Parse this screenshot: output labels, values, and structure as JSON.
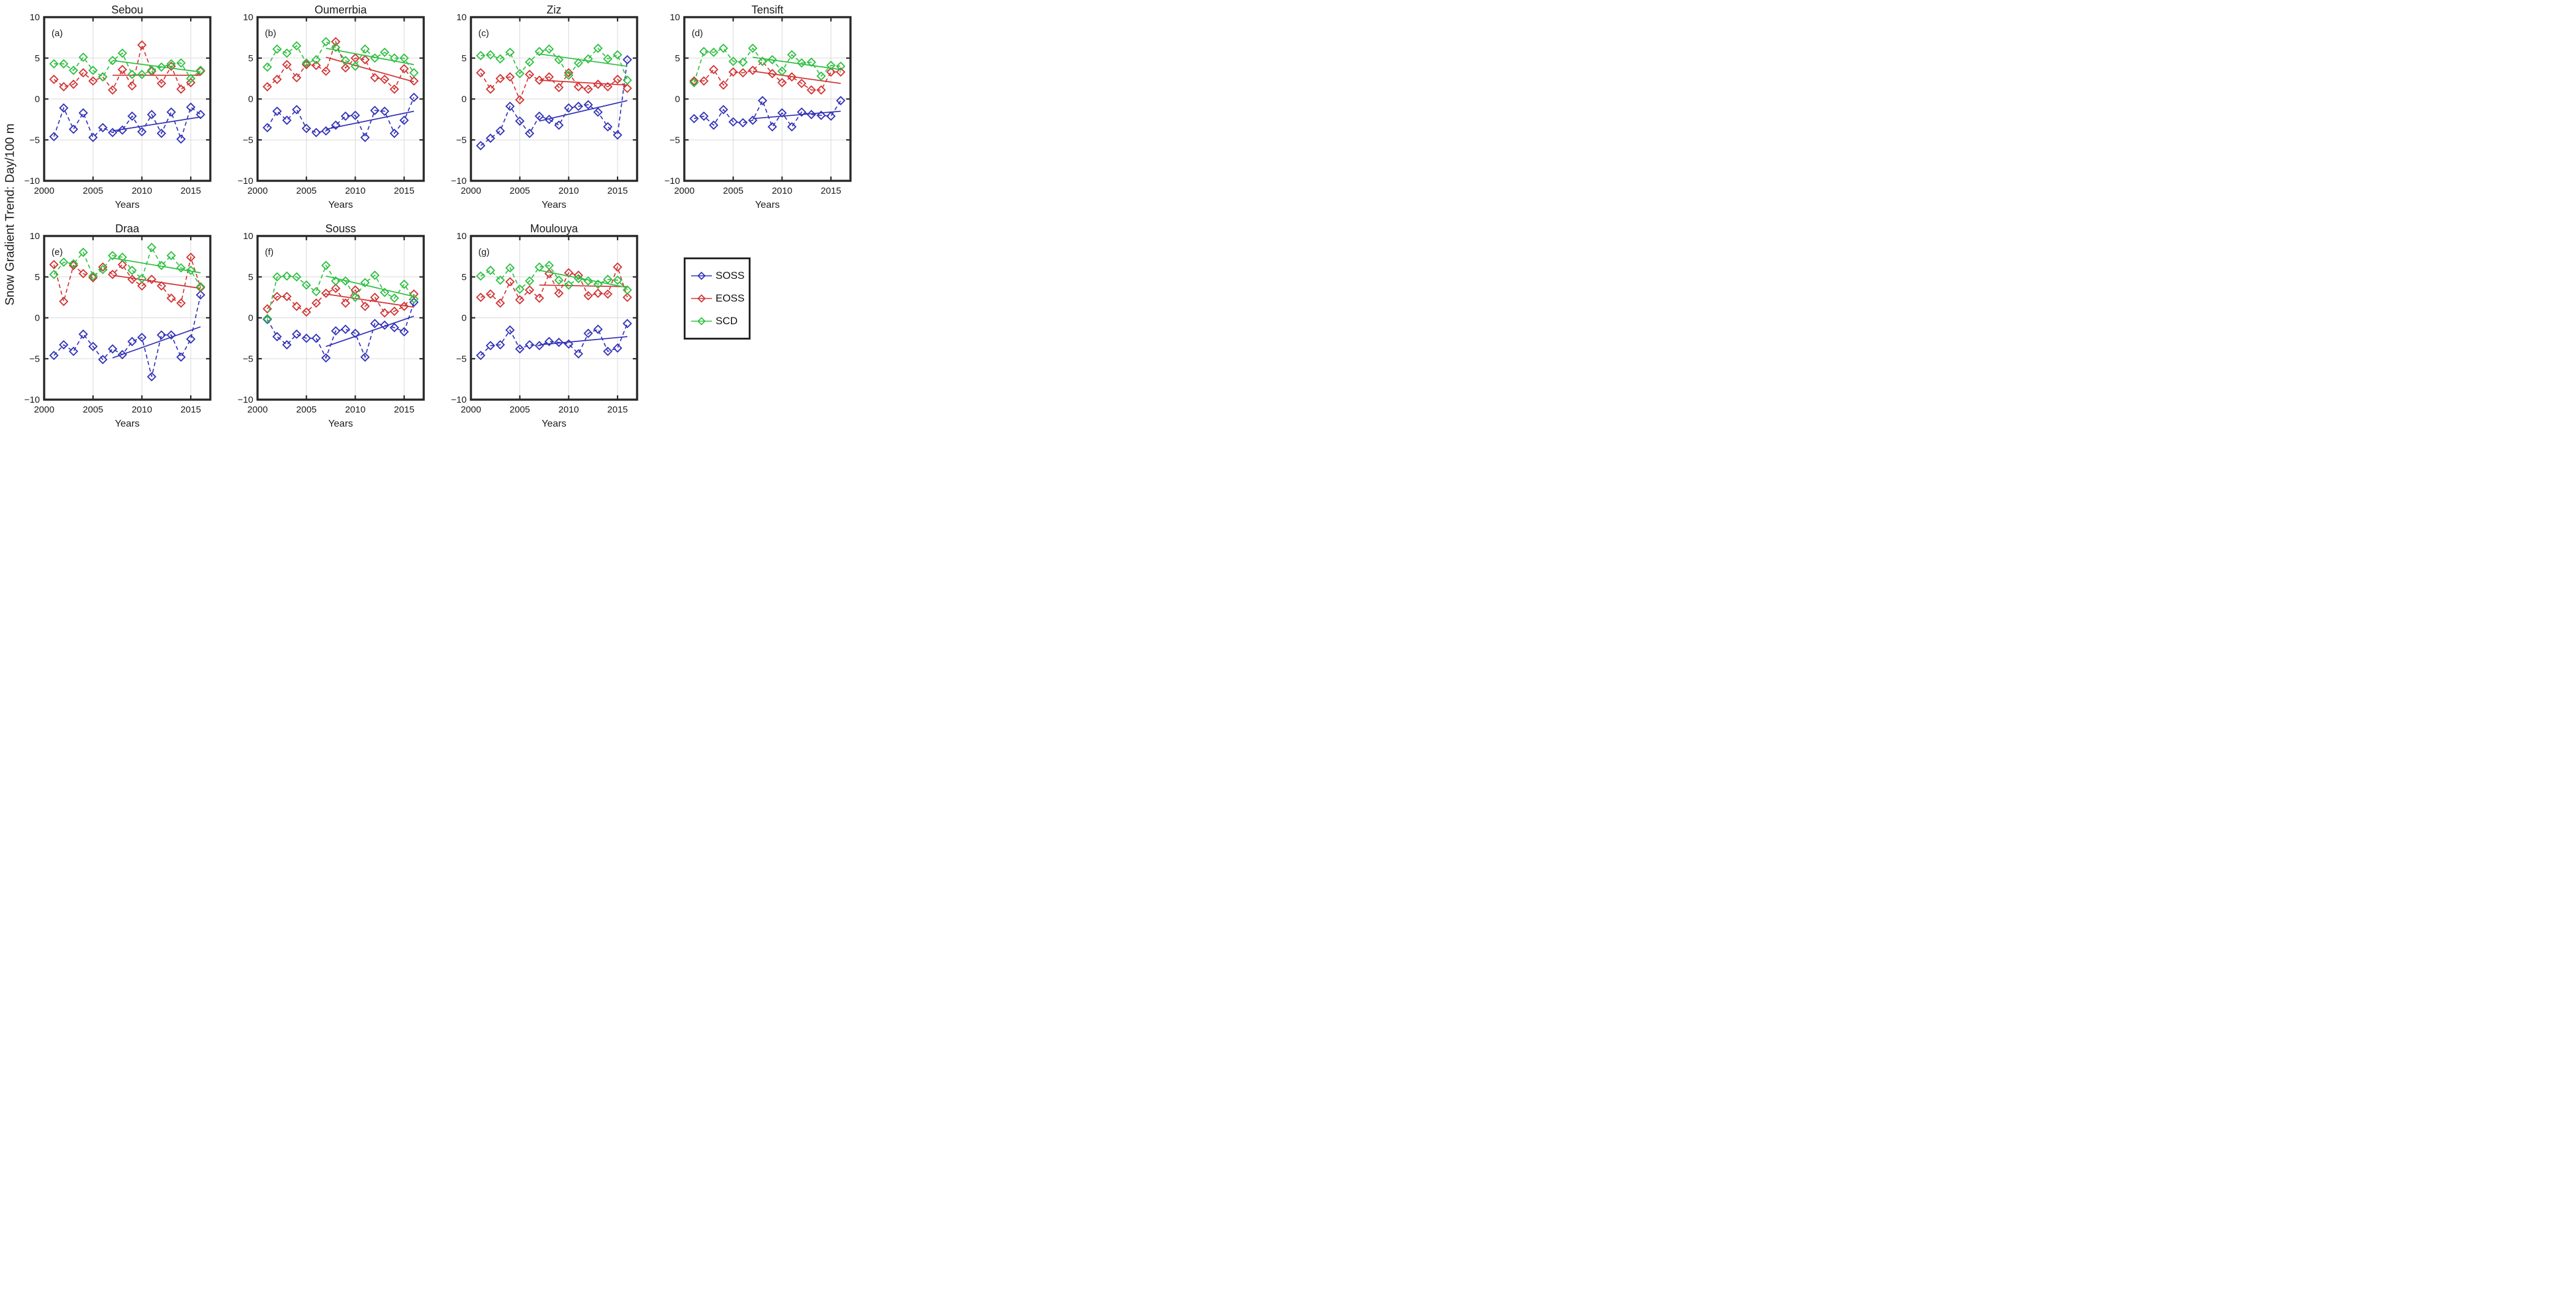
{
  "colors": {
    "SOSS": "#3232b8",
    "EOSS": "#d23434",
    "SCD": "#2fc042",
    "frame": "#262626",
    "grid": "#d9d9d9",
    "text": "#1a1a1a"
  },
  "legend": {
    "items": [
      {
        "label": "SOSS",
        "color": "#3232b8"
      },
      {
        "label": "EOSS",
        "color": "#d23434"
      },
      {
        "label": "SCD",
        "color": "#2fc042"
      }
    ]
  },
  "chart_data": {
    "type": "line",
    "marker": "open-diamond",
    "line_style": "dashed-with-solid-trend",
    "y_label": "Snow Gradient Trend: Day/100 m",
    "x_label": "Years",
    "x_range": [
      2000,
      2017
    ],
    "y_range": [
      -10,
      10
    ],
    "x_ticks": [
      2000,
      2005,
      2010,
      2015
    ],
    "y_ticks": [
      10,
      5,
      0,
      -5,
      -10
    ],
    "grid": true,
    "years": [
      2001,
      2002,
      2003,
      2004,
      2005,
      2006,
      2007,
      2008,
      2009,
      2010,
      2011,
      2012,
      2013,
      2014,
      2015,
      2016
    ],
    "series_names": [
      "SOSS",
      "EOSS",
      "SCD"
    ],
    "panels": [
      {
        "label": "(a)",
        "title": "Sebou",
        "series": {
          "SOSS": {
            "values": [
              -4.6,
              -1.1,
              -3.7,
              -1.7,
              -4.7,
              -3.5,
              -4.1,
              -3.8,
              -2.1,
              -4.0,
              -1.9,
              -4.2,
              -1.6,
              -4.9,
              -1.0,
              -1.9
            ],
            "trend": {
              "x": [
                2007,
                2016
              ],
              "y": [
                -3.9,
                -2.2
              ]
            }
          },
          "EOSS": {
            "values": [
              2.4,
              1.5,
              1.8,
              3.2,
              2.2,
              2.7,
              1.1,
              3.6,
              1.6,
              6.6,
              3.4,
              1.9,
              4.0,
              1.2,
              2.0,
              3.4
            ],
            "trend": {
              "x": [
                2007,
                2016
              ],
              "y": [
                2.9,
                2.9
              ]
            }
          },
          "SCD": {
            "values": [
              4.3,
              4.3,
              3.5,
              5.1,
              3.5,
              2.7,
              4.7,
              5.6,
              3.0,
              3.0,
              3.5,
              3.9,
              4.3,
              4.4,
              2.5,
              3.5
            ],
            "trend": {
              "x": [
                2007,
                2016
              ],
              "y": [
                4.7,
                3.3
              ]
            }
          }
        }
      },
      {
        "label": "(b)",
        "title": "Oumerrbia",
        "series": {
          "SOSS": {
            "values": [
              -3.5,
              -1.5,
              -2.6,
              -1.3,
              -3.6,
              -4.1,
              -3.9,
              -3.2,
              -2.1,
              -2.0,
              -4.7,
              -1.4,
              -1.5,
              -4.2,
              -2.6,
              0.2
            ],
            "trend": {
              "x": [
                2007,
                2016
              ],
              "y": [
                -3.7,
                -1.5
              ]
            }
          },
          "EOSS": {
            "values": [
              1.5,
              2.4,
              4.2,
              2.6,
              4.2,
              4.1,
              3.4,
              7.0,
              3.8,
              5.0,
              4.8,
              2.6,
              2.4,
              1.2,
              3.7,
              2.2
            ],
            "trend": {
              "x": [
                2007,
                2016
              ],
              "y": [
                5.1,
                2.1
              ]
            }
          },
          "SCD": {
            "values": [
              3.9,
              6.1,
              5.6,
              6.5,
              4.4,
              4.8,
              7.0,
              6.3,
              4.7,
              4.0,
              6.1,
              5.0,
              5.7,
              5.0,
              5.0,
              3.2
            ],
            "trend": {
              "x": [
                2007,
                2016
              ],
              "y": [
                6.2,
                4.2
              ]
            }
          }
        }
      },
      {
        "label": "(c)",
        "title": "Ziz",
        "series": {
          "SOSS": {
            "values": [
              -5.7,
              -4.8,
              -3.9,
              -0.9,
              -2.7,
              -4.2,
              -2.1,
              -2.5,
              -3.2,
              -1.1,
              -0.9,
              -0.7,
              -1.6,
              -3.4,
              -4.4,
              4.8
            ],
            "trend": {
              "x": [
                2007,
                2016
              ],
              "y": [
                -2.7,
                -0.2
              ]
            }
          },
          "EOSS": {
            "values": [
              3.2,
              1.2,
              2.5,
              2.7,
              -0.1,
              3.0,
              2.3,
              2.7,
              1.4,
              3.2,
              1.5,
              1.2,
              1.8,
              1.5,
              2.4,
              1.3
            ],
            "trend": {
              "x": [
                2007,
                2016
              ],
              "y": [
                2.3,
                1.7
              ]
            }
          },
          "SCD": {
            "values": [
              5.3,
              5.4,
              4.9,
              5.7,
              3.1,
              4.5,
              5.8,
              6.1,
              4.8,
              2.9,
              4.4,
              4.9,
              6.2,
              4.9,
              5.4,
              2.3
            ],
            "trend": {
              "x": [
                2007,
                2016
              ],
              "y": [
                5.5,
                4.0
              ]
            }
          }
        }
      },
      {
        "label": "(d)",
        "title": "Tensift",
        "series": {
          "SOSS": {
            "values": [
              -2.4,
              -2.1,
              -3.2,
              -1.3,
              -2.8,
              -2.9,
              -2.6,
              -0.2,
              -3.4,
              -1.7,
              -3.4,
              -1.6,
              -1.9,
              -2.0,
              -2.1,
              -0.2
            ],
            "trend": {
              "x": [
                2007,
                2016
              ],
              "y": [
                -2.4,
                -1.5
              ]
            }
          },
          "EOSS": {
            "values": [
              2.2,
              2.2,
              3.6,
              1.7,
              3.3,
              3.2,
              3.5,
              4.6,
              3.1,
              2.0,
              2.7,
              1.9,
              1.1,
              1.1,
              3.3,
              3.3
            ],
            "trend": {
              "x": [
                2007,
                2016
              ],
              "y": [
                3.4,
                1.9
              ]
            }
          },
          "SCD": {
            "values": [
              2.0,
              5.8,
              5.7,
              6.2,
              4.6,
              4.5,
              6.2,
              4.6,
              4.8,
              3.4,
              5.4,
              4.4,
              4.5,
              2.8,
              4.1,
              4.0
            ],
            "trend": {
              "x": [
                2007,
                2016
              ],
              "y": [
                5.1,
                3.6
              ]
            }
          }
        }
      },
      {
        "label": "(e)",
        "title": "Draa",
        "series": {
          "SOSS": {
            "values": [
              -4.6,
              -3.3,
              -4.1,
              -2.0,
              -3.5,
              -5.1,
              -3.8,
              -4.5,
              -2.9,
              -2.4,
              -7.2,
              -2.1,
              -2.1,
              -4.8,
              -2.6,
              2.8
            ],
            "trend": {
              "x": [
                2007,
                2016
              ],
              "y": [
                -4.9,
                -1.1
              ]
            }
          },
          "EOSS": {
            "values": [
              6.5,
              2.0,
              6.4,
              5.4,
              4.9,
              6.2,
              5.3,
              6.5,
              4.7,
              3.9,
              4.7,
              3.9,
              2.4,
              1.8,
              7.4,
              3.7
            ],
            "trend": {
              "x": [
                2007,
                2016
              ],
              "y": [
                5.2,
                3.6
              ]
            }
          },
          "SCD": {
            "values": [
              5.3,
              6.8,
              6.6,
              8.0,
              5.1,
              5.9,
              7.6,
              7.4,
              5.8,
              4.8,
              8.6,
              6.4,
              7.6,
              6.1,
              5.8,
              3.8
            ],
            "trend": {
              "x": [
                2007,
                2016
              ],
              "y": [
                7.3,
                5.5
              ]
            }
          }
        }
      },
      {
        "label": "(f)",
        "title": "Souss",
        "series": {
          "SOSS": {
            "values": [
              -0.2,
              -2.3,
              -3.3,
              -2.0,
              -2.5,
              -2.5,
              -4.9,
              -1.6,
              -1.4,
              -1.9,
              -4.8,
              -0.7,
              -0.9,
              -1.2,
              -1.7,
              1.9
            ],
            "trend": {
              "x": [
                2007,
                2016
              ],
              "y": [
                -3.5,
                0.2
              ]
            }
          },
          "EOSS": {
            "values": [
              1.1,
              2.6,
              2.6,
              1.4,
              0.7,
              1.8,
              3.0,
              3.6,
              1.8,
              3.4,
              1.4,
              2.5,
              0.6,
              0.8,
              1.4,
              2.9
            ],
            "trend": {
              "x": [
                2007,
                2016
              ],
              "y": [
                2.9,
                1.3
              ]
            }
          },
          "SCD": {
            "values": [
              -0.1,
              5.0,
              5.1,
              5.0,
              4.0,
              3.2,
              6.4,
              4.5,
              4.5,
              2.5,
              4.3,
              5.2,
              3.1,
              2.4,
              4.1,
              2.3
            ],
            "trend": {
              "x": [
                2007,
                2016
              ],
              "y": [
                5.1,
                2.6
              ]
            }
          }
        }
      },
      {
        "label": "(g)",
        "title": "Moulouya",
        "series": {
          "SOSS": {
            "values": [
              -4.6,
              -3.4,
              -3.3,
              -1.5,
              -3.8,
              -3.3,
              -3.4,
              -2.9,
              -3.0,
              -3.2,
              -4.4,
              -1.9,
              -1.4,
              -4.1,
              -3.7,
              -0.7
            ],
            "trend": {
              "x": [
                2007,
                2016
              ],
              "y": [
                -3.3,
                -2.3
              ]
            }
          },
          "EOSS": {
            "values": [
              2.5,
              2.9,
              1.8,
              4.4,
              2.2,
              3.4,
              2.4,
              5.4,
              3.0,
              5.5,
              5.2,
              2.7,
              3.0,
              2.9,
              6.2,
              2.5
            ],
            "trend": {
              "x": [
                2007,
                2016
              ],
              "y": [
                4.0,
                3.8
              ]
            }
          },
          "SCD": {
            "values": [
              5.1,
              5.8,
              4.6,
              6.1,
              3.5,
              4.5,
              6.2,
              6.4,
              4.6,
              4.0,
              4.8,
              4.5,
              4.1,
              4.7,
              4.6,
              3.4
            ],
            "trend": {
              "x": [
                2007,
                2016
              ],
              "y": [
                5.8,
                3.7
              ]
            }
          }
        }
      }
    ]
  }
}
